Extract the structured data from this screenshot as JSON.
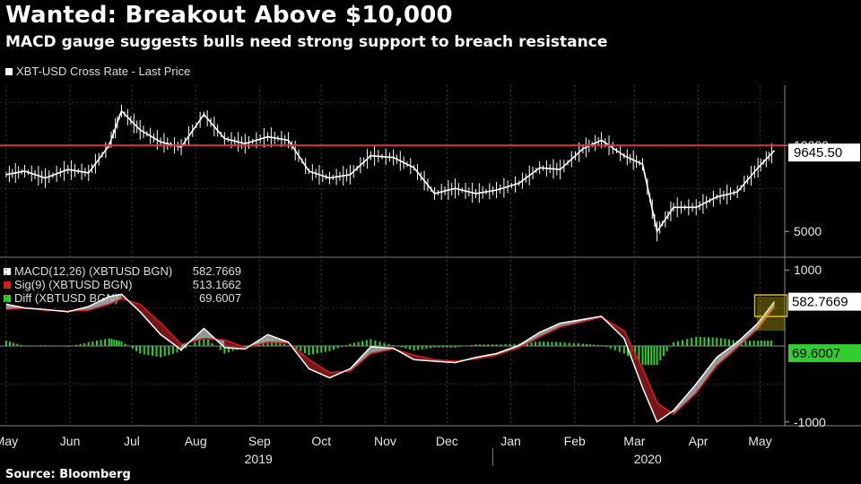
{
  "header": {
    "title": "Wanted: Breakout Above $10,000",
    "subtitle": "MACD gauge suggests bulls need strong support to breach resistance"
  },
  "source": "Source: Bloomberg",
  "colors": {
    "background": "#000000",
    "price": "#ffffff",
    "resistance": "#e0304a",
    "macd": "#ffffff",
    "signal": "#d42020",
    "diff": "#33cc33",
    "highlight": "#d4c21a",
    "fill_red": "#8b1a1a",
    "fill_grey": "#b0b0b0"
  },
  "chart_data": [
    {
      "type": "line",
      "title": "",
      "legend": [
        "XBT-USD Cross Rate - Last Price"
      ],
      "ylabel": "",
      "yticks": [
        "5000",
        "10000"
      ],
      "ylim": [
        3500,
        13500
      ],
      "resistance_level": 10000,
      "last_value_label": "9645.50",
      "series": [
        {
          "name": "XBT-USD Cross Rate - Last Price",
          "x": [
            "2019-05-01",
            "2019-05-10",
            "2019-05-20",
            "2019-05-31",
            "2019-06-10",
            "2019-06-20",
            "2019-06-26",
            "2019-07-05",
            "2019-07-15",
            "2019-07-25",
            "2019-08-05",
            "2019-08-15",
            "2019-08-25",
            "2019-09-05",
            "2019-09-15",
            "2019-09-25",
            "2019-10-05",
            "2019-10-15",
            "2019-10-25",
            "2019-11-05",
            "2019-11-15",
            "2019-11-25",
            "2019-12-05",
            "2019-12-15",
            "2019-12-25",
            "2020-01-05",
            "2020-01-15",
            "2020-01-25",
            "2020-02-05",
            "2020-02-14",
            "2020-02-25",
            "2020-03-05",
            "2020-03-12",
            "2020-03-20",
            "2020-03-31",
            "2020-04-10",
            "2020-04-20",
            "2020-04-30",
            "2020-05-08"
          ],
          "values": [
            8300,
            8500,
            8100,
            8600,
            8400,
            10000,
            12000,
            10900,
            10200,
            9900,
            11800,
            10400,
            10100,
            10500,
            10300,
            8500,
            8100,
            8300,
            9400,
            9300,
            8700,
            7200,
            7500,
            7200,
            7400,
            7800,
            8700,
            8600,
            9800,
            10300,
            9400,
            8900,
            5000,
            6400,
            6400,
            7000,
            7300,
            8700,
            9700
          ]
        }
      ]
    },
    {
      "type": "line",
      "title": "",
      "yticks": [
        "1000",
        "-1000"
      ],
      "ylim": [
        -1050,
        1050
      ],
      "legend": [
        {
          "name": "MACD(12,26) (XBTUSD BGN)",
          "value": "582.7669"
        },
        {
          "name": "Sig(9) (XBTUSD BGN)",
          "value": "513.1662"
        },
        {
          "name": "Diff (XBTUSD BGN)",
          "value": "69.6007"
        }
      ],
      "last_value_labels": {
        "macd": "582.7669",
        "diff": "69.6007"
      },
      "x": [
        "2019-05-01",
        "2019-05-10",
        "2019-05-20",
        "2019-05-31",
        "2019-06-10",
        "2019-06-20",
        "2019-06-26",
        "2019-07-05",
        "2019-07-15",
        "2019-07-25",
        "2019-08-05",
        "2019-08-15",
        "2019-08-25",
        "2019-09-05",
        "2019-09-15",
        "2019-09-25",
        "2019-10-05",
        "2019-10-15",
        "2019-10-25",
        "2019-11-05",
        "2019-11-15",
        "2019-11-25",
        "2019-12-05",
        "2019-12-15",
        "2019-12-25",
        "2020-01-05",
        "2020-01-15",
        "2020-01-25",
        "2020-02-05",
        "2020-02-14",
        "2020-02-25",
        "2020-03-05",
        "2020-03-12",
        "2020-03-20",
        "2020-03-31",
        "2020-04-10",
        "2020-04-20",
        "2020-04-30",
        "2020-05-08"
      ],
      "series": [
        {
          "name": "MACD(12,26) (XBTUSD BGN)",
          "values": [
            550,
            500,
            480,
            450,
            520,
            650,
            680,
            450,
            150,
            -50,
            230,
            -20,
            -40,
            150,
            50,
            -300,
            -420,
            -300,
            -10,
            -30,
            -180,
            -200,
            -220,
            -150,
            -100,
            10,
            180,
            300,
            350,
            390,
            100,
            -550,
            -1000,
            -850,
            -500,
            -150,
            50,
            300,
            583
          ]
        },
        {
          "name": "Sig(9) (XBTUSD BGN)",
          "values": [
            480,
            500,
            470,
            460,
            470,
            550,
            620,
            550,
            300,
            20,
            100,
            80,
            -20,
            50,
            40,
            -180,
            -350,
            -330,
            -100,
            -40,
            -120,
            -180,
            -200,
            -170,
            -120,
            -20,
            120,
            250,
            320,
            380,
            200,
            -300,
            -750,
            -900,
            -620,
            -260,
            -20,
            230,
            513
          ]
        },
        {
          "name": "Diff (XBTUSD BGN)",
          "values": [
            70,
            0,
            10,
            -10,
            50,
            100,
            60,
            -100,
            -150,
            -70,
            130,
            -100,
            -20,
            100,
            10,
            -120,
            -70,
            30,
            90,
            10,
            -60,
            -20,
            -20,
            20,
            20,
            30,
            60,
            50,
            30,
            10,
            -100,
            -250,
            -250,
            50,
            120,
            110,
            70,
            70,
            70
          ]
        }
      ]
    }
  ],
  "x_axis": {
    "months": [
      "May",
      "Jun",
      "Jul",
      "Aug",
      "Sep",
      "Oct",
      "Nov",
      "Dec",
      "Jan",
      "Feb",
      "Mar",
      "Apr",
      "May"
    ],
    "years": [
      "2019",
      "2020"
    ]
  }
}
